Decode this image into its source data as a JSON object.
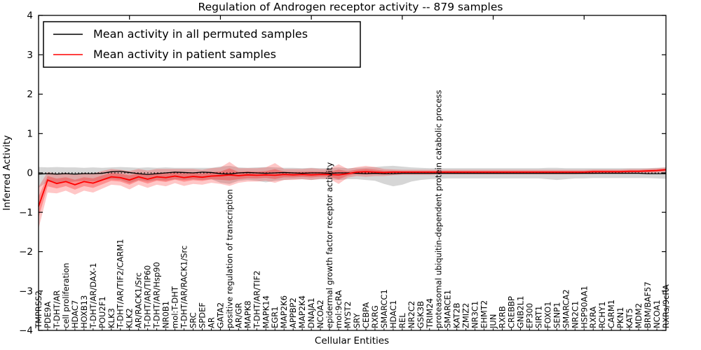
{
  "chart_data": {
    "type": "line",
    "title": "Regulation of Androgen receptor activity -- 879 samples",
    "xlabel": "Cellular Entities",
    "ylabel": "Inferred Activity",
    "ylim": [
      -4,
      4
    ],
    "yticks": [
      4,
      3,
      2,
      1,
      0,
      -1,
      -2,
      -3,
      -4
    ],
    "xticks_top_every": 10,
    "grid": false,
    "zero_line": {
      "style": "dotted",
      "color": "#000000",
      "y": 0
    },
    "legend": {
      "position": "upper left",
      "entries": [
        {
          "label": "Mean activity in all permuted samples",
          "color": "#000000"
        },
        {
          "label": "Mean activity in patient samples",
          "color": "#ff0000"
        }
      ]
    },
    "categories": [
      "TMPRSS2",
      "PDE9A",
      "T-DHT/AR",
      "cell proliferation",
      "HDAC7",
      "HOXB13",
      "T-DHT/AR/DAX-1",
      "POU2F1",
      "KLK3",
      "T-DHT/AR/TIF2/CARM1",
      "KLK2",
      "AR/RACK1/Src",
      "T-DHT/AR/TIP60",
      "T-DHT/AR/Hsp90",
      "NR0B1",
      "mol:T-DHT",
      "T-DHT/AR/RACK1/Src",
      "SRC",
      "SPDEF",
      "AR",
      "GATA2",
      "positive regulation of transcription",
      "AR/GR",
      "MAPK8",
      "T-DHT/AR/TIF2",
      "MAPK14",
      "EGR1",
      "MAP2K6",
      "APPBP2",
      "MAP2K4",
      "DNAJA1",
      "NCOA2",
      "epidermal growth factor receptor activity",
      "mol:9cRA",
      "MYST2",
      "SRY",
      "CEBPA",
      "RXRG",
      "SMARCC1",
      "HDAC1",
      "REL",
      "NR2C2",
      "GSK3B",
      "TRIM24",
      "proteasomal ubiquitin-dependent protein catabolic process",
      "SMARCE1",
      "KAT2B",
      "ZMIZ2",
      "NR3C1",
      "EHMT2",
      "JUN",
      "RXRB",
      "CREBBP",
      "GNB2L1",
      "EP300",
      "SIRT1",
      "FOXO1",
      "SENP1",
      "SMARCA2",
      "NR2C1",
      "HSP90AA1",
      "RXRA",
      "RCHY1",
      "CARM1",
      "PKN1",
      "KAT5",
      "MDM2",
      "BRM/BAF57",
      "NCOA1",
      "RXRs/9cRA"
    ],
    "series": [
      {
        "name": "Mean activity in all permuted samples",
        "color": "#000000",
        "band_color": "#808080",
        "values": [
          -0.03,
          -0.02,
          -0.03,
          -0.02,
          -0.03,
          -0.02,
          -0.02,
          -0.01,
          0.03,
          0.04,
          0.01,
          -0.02,
          -0.04,
          -0.02,
          0.0,
          0.02,
          0.01,
          0.0,
          0.02,
          0.01,
          -0.02,
          -0.03,
          0.0,
          0.01,
          0.0,
          -0.01,
          0.0,
          0.01,
          0.0,
          -0.01,
          0.0,
          0.0,
          -0.01,
          0.0,
          0.0,
          -0.01,
          -0.02,
          -0.01,
          -0.02,
          -0.02,
          -0.01,
          -0.01,
          -0.01,
          -0.01,
          -0.01,
          -0.01,
          -0.01,
          -0.01,
          -0.01,
          -0.01,
          -0.01,
          -0.01,
          -0.01,
          -0.01,
          -0.01,
          -0.01,
          -0.01,
          -0.01,
          -0.01,
          -0.01,
          -0.01,
          -0.01,
          -0.01,
          -0.01,
          -0.01,
          -0.01,
          -0.01,
          -0.02,
          -0.02,
          -0.02
        ],
        "band_lo": [
          -0.38,
          -0.22,
          -0.26,
          -0.24,
          -0.22,
          -0.2,
          -0.22,
          -0.18,
          -0.16,
          -0.18,
          -0.26,
          -0.18,
          -0.22,
          -0.18,
          -0.2,
          -0.16,
          -0.18,
          -0.16,
          -0.18,
          -0.16,
          -0.25,
          -0.28,
          -0.2,
          -0.18,
          -0.2,
          -0.24,
          -0.2,
          -0.18,
          -0.16,
          -0.16,
          -0.18,
          -0.16,
          -0.16,
          -0.18,
          -0.16,
          -0.16,
          -0.18,
          -0.2,
          -0.28,
          -0.34,
          -0.3,
          -0.22,
          -0.18,
          -0.16,
          -0.15,
          -0.14,
          -0.14,
          -0.14,
          -0.14,
          -0.14,
          -0.14,
          -0.14,
          -0.14,
          -0.14,
          -0.14,
          -0.14,
          -0.16,
          -0.18,
          -0.16,
          -0.14,
          -0.14,
          -0.13,
          -0.13,
          -0.13,
          -0.13,
          -0.13,
          -0.13,
          -0.13,
          -0.14,
          -0.15
        ],
        "band_hi": [
          0.15,
          0.14,
          0.15,
          0.14,
          0.14,
          0.13,
          0.14,
          0.13,
          0.14,
          0.15,
          0.14,
          0.13,
          0.14,
          0.13,
          0.14,
          0.13,
          0.13,
          0.13,
          0.13,
          0.13,
          0.16,
          0.18,
          0.14,
          0.13,
          0.14,
          0.15,
          0.14,
          0.13,
          0.13,
          0.12,
          0.13,
          0.12,
          0.12,
          0.14,
          0.12,
          0.13,
          0.14,
          0.15,
          0.17,
          0.18,
          0.16,
          0.14,
          0.13,
          0.12,
          0.12,
          0.12,
          0.12,
          0.12,
          0.12,
          0.12,
          0.12,
          0.12,
          0.12,
          0.12,
          0.12,
          0.12,
          0.13,
          0.13,
          0.12,
          0.12,
          0.12,
          0.12,
          0.12,
          0.12,
          0.12,
          0.12,
          0.12,
          0.12,
          0.13,
          0.14
        ]
      },
      {
        "name": "Mean activity in patient samples",
        "color": "#ff0000",
        "band_color": "#ff0000",
        "values": [
          -0.85,
          -0.18,
          -0.27,
          -0.22,
          -0.3,
          -0.22,
          -0.26,
          -0.18,
          -0.1,
          -0.12,
          -0.18,
          -0.1,
          -0.16,
          -0.1,
          -0.12,
          -0.08,
          -0.12,
          -0.09,
          -0.11,
          -0.08,
          -0.07,
          -0.05,
          -0.07,
          -0.05,
          -0.06,
          -0.05,
          -0.06,
          -0.04,
          -0.05,
          -0.04,
          -0.05,
          -0.04,
          -0.04,
          -0.05,
          -0.02,
          0.02,
          0.03,
          0.02,
          0.01,
          0.02,
          0.02,
          0.02,
          0.02,
          0.02,
          0.02,
          0.02,
          0.02,
          0.02,
          0.02,
          0.02,
          0.02,
          0.02,
          0.02,
          0.02,
          0.02,
          0.02,
          0.02,
          0.02,
          0.02,
          0.02,
          0.02,
          0.03,
          0.03,
          0.03,
          0.03,
          0.04,
          0.04,
          0.05,
          0.06,
          0.08
        ],
        "band_lo": [
          -1.42,
          -0.5,
          -0.52,
          -0.45,
          -0.55,
          -0.45,
          -0.5,
          -0.4,
          -0.3,
          -0.32,
          -0.42,
          -0.3,
          -0.38,
          -0.3,
          -0.34,
          -0.26,
          -0.33,
          -0.28,
          -0.3,
          -0.25,
          -0.28,
          -0.33,
          -0.25,
          -0.22,
          -0.22,
          -0.2,
          -0.25,
          -0.18,
          -0.18,
          -0.16,
          -0.18,
          -0.15,
          -0.15,
          -0.28,
          -0.12,
          -0.08,
          -0.1,
          -0.08,
          -0.08,
          -0.06,
          -0.05,
          -0.05,
          -0.05,
          -0.05,
          -0.04,
          -0.04,
          -0.04,
          -0.04,
          -0.04,
          -0.04,
          -0.04,
          -0.04,
          -0.04,
          -0.04,
          -0.04,
          -0.04,
          -0.04,
          -0.04,
          -0.04,
          -0.04,
          -0.03,
          -0.03,
          -0.02,
          -0.02,
          -0.02,
          -0.02,
          -0.01,
          -0.01,
          0.0,
          0.02
        ],
        "band_hi": [
          -0.35,
          0.02,
          -0.02,
          0.0,
          -0.05,
          0.0,
          -0.02,
          0.05,
          0.1,
          0.08,
          0.05,
          0.1,
          0.06,
          0.1,
          0.1,
          0.1,
          0.1,
          0.1,
          0.08,
          0.12,
          0.14,
          0.28,
          0.12,
          0.12,
          0.12,
          0.14,
          0.25,
          0.1,
          0.1,
          0.1,
          0.12,
          0.1,
          0.1,
          0.22,
          0.1,
          0.15,
          0.18,
          0.15,
          0.1,
          0.09,
          0.08,
          0.08,
          0.08,
          0.08,
          0.08,
          0.08,
          0.08,
          0.08,
          0.08,
          0.08,
          0.08,
          0.08,
          0.08,
          0.08,
          0.08,
          0.08,
          0.08,
          0.08,
          0.08,
          0.08,
          0.08,
          0.09,
          0.09,
          0.09,
          0.09,
          0.1,
          0.1,
          0.11,
          0.12,
          0.14
        ]
      }
    ]
  }
}
